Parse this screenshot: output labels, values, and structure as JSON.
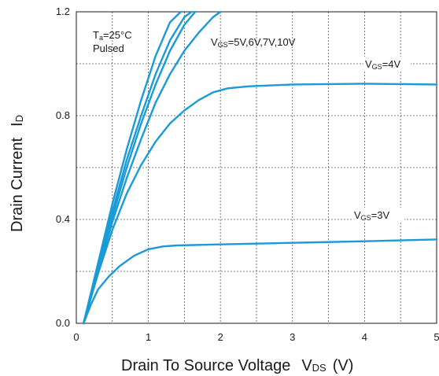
{
  "chart_data": {
    "type": "line",
    "title": "",
    "xlabel": {
      "main": "Drain To Source Voltage",
      "symbol": "V",
      "sub": "DS",
      "unit": "(V)"
    },
    "ylabel": {
      "main": "Drain Current",
      "symbol": "I",
      "sub": "D"
    },
    "xlim": [
      0,
      5
    ],
    "ylim": [
      0,
      1.2
    ],
    "x_ticks": [
      "0",
      "1",
      "2",
      "3",
      "4",
      "5"
    ],
    "y_ticks": [
      {
        "value": 0.0,
        "label": "0.0"
      },
      {
        "value": 0.4,
        "label": "0.4"
      },
      {
        "value": 0.8,
        "label": "0.8"
      },
      {
        "value": 1.2,
        "label": "1.2"
      }
    ],
    "grid": true,
    "line_color": "#1a9ad6",
    "annotations": {
      "conditions": {
        "line1_prefix": "T",
        "line1_sub": "a",
        "line1_rest": "=25°C",
        "line2": "Pulsed"
      },
      "vgs_high": {
        "prefix": "V",
        "sub": "GS",
        "rest": "=5V,6V,7V,10V"
      },
      "vgs_4": {
        "prefix": "V",
        "sub": "GS",
        "rest": "=4V"
      },
      "vgs_3": {
        "prefix": "V",
        "sub": "GS",
        "rest": "=3V"
      }
    },
    "series": [
      {
        "vgs": "3V",
        "x": [
          0.1,
          0.2,
          0.3,
          0.45,
          0.6,
          0.8,
          1.0,
          1.2,
          1.4,
          2.0,
          3.0,
          4.0,
          5.0
        ],
        "y": [
          0.0,
          0.07,
          0.13,
          0.18,
          0.22,
          0.26,
          0.285,
          0.296,
          0.3,
          0.304,
          0.31,
          0.316,
          0.323
        ]
      },
      {
        "vgs": "4V",
        "x": [
          0.1,
          0.3,
          0.5,
          0.7,
          0.9,
          1.1,
          1.3,
          1.5,
          1.7,
          1.9,
          2.1,
          2.4,
          3.0,
          4.0,
          5.0
        ],
        "y": [
          0.0,
          0.19,
          0.36,
          0.5,
          0.61,
          0.7,
          0.77,
          0.82,
          0.86,
          0.89,
          0.905,
          0.913,
          0.92,
          0.923,
          0.92
        ]
      },
      {
        "vgs": "5V",
        "x": [
          0.1,
          0.3,
          0.5,
          0.7,
          0.9,
          1.1,
          1.3,
          1.5,
          1.7,
          1.9,
          2.0
        ],
        "y": [
          0.0,
          0.2,
          0.39,
          0.56,
          0.71,
          0.85,
          0.96,
          1.05,
          1.12,
          1.18,
          1.2
        ]
      },
      {
        "vgs": "6V",
        "x": [
          0.1,
          0.3,
          0.5,
          0.7,
          0.9,
          1.1,
          1.3,
          1.5,
          1.65
        ],
        "y": [
          0.0,
          0.21,
          0.41,
          0.6,
          0.77,
          0.92,
          1.05,
          1.15,
          1.2
        ]
      },
      {
        "vgs": "7V",
        "x": [
          0.1,
          0.3,
          0.5,
          0.7,
          0.9,
          1.1,
          1.3,
          1.5,
          1.6
        ],
        "y": [
          0.0,
          0.22,
          0.43,
          0.63,
          0.8,
          0.96,
          1.09,
          1.18,
          1.2
        ]
      },
      {
        "vgs": "10V",
        "x": [
          0.1,
          0.3,
          0.5,
          0.7,
          0.9,
          1.1,
          1.3,
          1.45
        ],
        "y": [
          0.0,
          0.23,
          0.46,
          0.67,
          0.86,
          1.03,
          1.16,
          1.2
        ]
      }
    ]
  }
}
